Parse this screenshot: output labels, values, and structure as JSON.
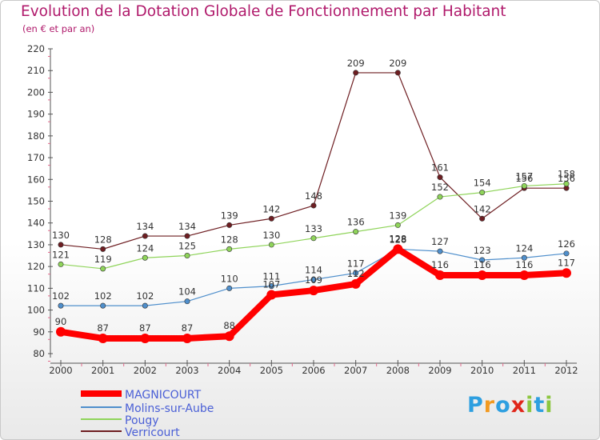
{
  "title": "Evolution de la Dotation Globale de Fonctionnement par Habitant",
  "subtitle": "(en € et par an)",
  "logo": {
    "text": "Proxiti",
    "letters": [
      "P",
      "r",
      "o",
      "x",
      "i",
      "t",
      "i"
    ],
    "colors": [
      "#2e9fe0",
      "#f29a20",
      "#2e9fe0",
      "#e0261a",
      "#8cc63f",
      "#2e9fe0",
      "#8cc63f"
    ]
  },
  "chart_data": {
    "type": "line",
    "title": "Evolution de la Dotation Globale de Fonctionnement par Habitant",
    "ylabel": "(en € et par an)",
    "x": [
      "2000",
      "2001",
      "2002",
      "2003",
      "2004",
      "2005",
      "2006",
      "2007",
      "2008",
      "2009",
      "2010",
      "2011",
      "2012"
    ],
    "ylim": [
      80,
      220
    ],
    "yticks": [
      80,
      90,
      100,
      110,
      120,
      130,
      140,
      150,
      160,
      170,
      180,
      190,
      200,
      210,
      220
    ],
    "grid": false,
    "legend": "bottom-left",
    "series": [
      {
        "name": "MAGNICOURT",
        "color": "#ff0000",
        "values": [
          90,
          87,
          87,
          87,
          88,
          107,
          109,
          112,
          128,
          116,
          116,
          116,
          117
        ],
        "labels": [
          "90",
          "87",
          "87",
          "87",
          "88",
          "107",
          "109",
          "112",
          "128",
          "116",
          "116",
          "116",
          "117"
        ]
      },
      {
        "name": "Molins-sur-Aube",
        "color": "#4f8fcc",
        "values": [
          102,
          102,
          102,
          104,
          110,
          111,
          114,
          117,
          128,
          127,
          123,
          124,
          126
        ],
        "labels": [
          "102",
          "102",
          "102",
          "104",
          "110",
          "111",
          "114",
          "117",
          "128",
          "127",
          "123",
          "124",
          "126"
        ]
      },
      {
        "name": "Pougy",
        "color": "#8fd45a",
        "values": [
          121,
          119,
          124,
          125,
          128,
          130,
          133,
          136,
          139,
          152,
          154,
          157,
          158
        ],
        "labels": [
          "121",
          "119",
          "124",
          "125",
          "128",
          "130",
          "133",
          "136",
          "139",
          "152",
          "154",
          "157",
          "158"
        ]
      },
      {
        "name": "Verricourt",
        "color": "#6e1e22",
        "values": [
          130,
          128,
          134,
          134,
          139,
          142,
          148,
          209,
          209,
          161,
          142,
          156,
          156
        ],
        "labels": [
          "130",
          "128",
          "134",
          "134",
          "139",
          "142",
          "148",
          "209",
          "209",
          "161",
          "142",
          "156",
          "156"
        ]
      }
    ]
  }
}
